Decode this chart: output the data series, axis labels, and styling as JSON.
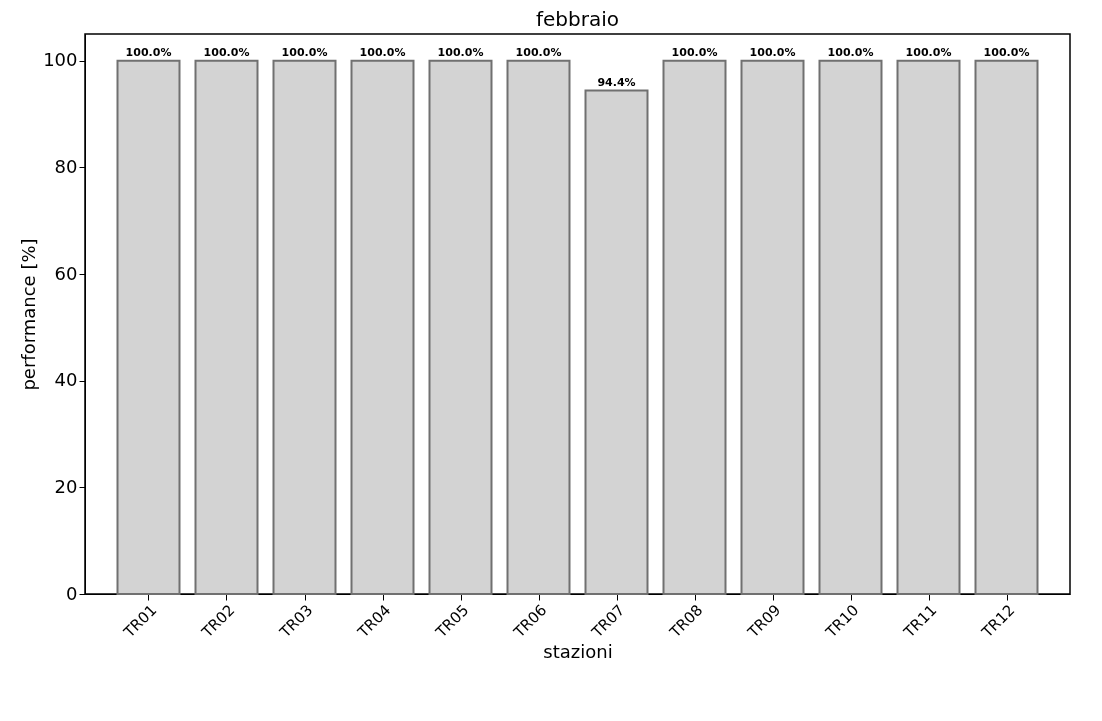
{
  "chart_data": {
    "type": "bar",
    "title": "febbraio",
    "xlabel": "stazioni",
    "ylabel": "performance [%]",
    "categories": [
      "TR01",
      "TR02",
      "TR03",
      "TR04",
      "TR05",
      "TR06",
      "TR07",
      "TR08",
      "TR09",
      "TR10",
      "TR11",
      "TR12"
    ],
    "values": [
      100.0,
      100.0,
      100.0,
      100.0,
      100.0,
      100.0,
      94.4,
      100.0,
      100.0,
      100.0,
      100.0,
      100.0
    ],
    "value_labels": [
      "100.0%",
      "100.0%",
      "100.0%",
      "100.0%",
      "100.0%",
      "100.0%",
      "94.4%",
      "100.0%",
      "100.0%",
      "100.0%",
      "100.0%",
      "100.0%"
    ],
    "color": "#d3d3d3",
    "ylim": [
      0,
      105
    ],
    "yticks": [
      0,
      20,
      40,
      60,
      80,
      100
    ],
    "grid": false
  }
}
